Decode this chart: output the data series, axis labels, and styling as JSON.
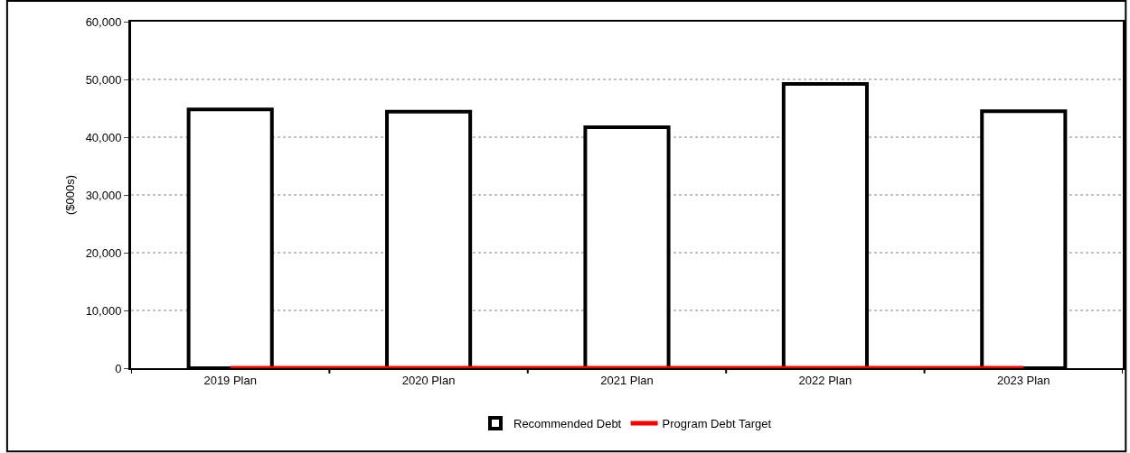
{
  "chart_data": {
    "type": "bar",
    "ylabel": "($000s)",
    "categories": [
      "2019 Plan",
      "2020 Plan",
      "2021 Plan",
      "2022 Plan",
      "2023 Plan"
    ],
    "series": [
      {
        "name": "Recommended Debt",
        "color": "#ffffff",
        "values": [
          44800,
          44400,
          41700,
          49200,
          44500
        ]
      },
      {
        "name": "Program Debt Target",
        "type": "line",
        "color": "#ff0000",
        "values": [
          0,
          0,
          0,
          0,
          0
        ]
      }
    ],
    "ylim": [
      0,
      60000
    ],
    "yticks": [
      {
        "value": 0,
        "label": "0"
      },
      {
        "value": 10000,
        "label": "10,000"
      },
      {
        "value": 20000,
        "label": "20,000"
      },
      {
        "value": 30000,
        "label": "30,000"
      },
      {
        "value": 40000,
        "label": "40,000"
      },
      {
        "value": 50000,
        "label": "50,000"
      },
      {
        "value": 60000,
        "label": "60,000"
      }
    ],
    "grid": "y",
    "legend": "bottom"
  }
}
